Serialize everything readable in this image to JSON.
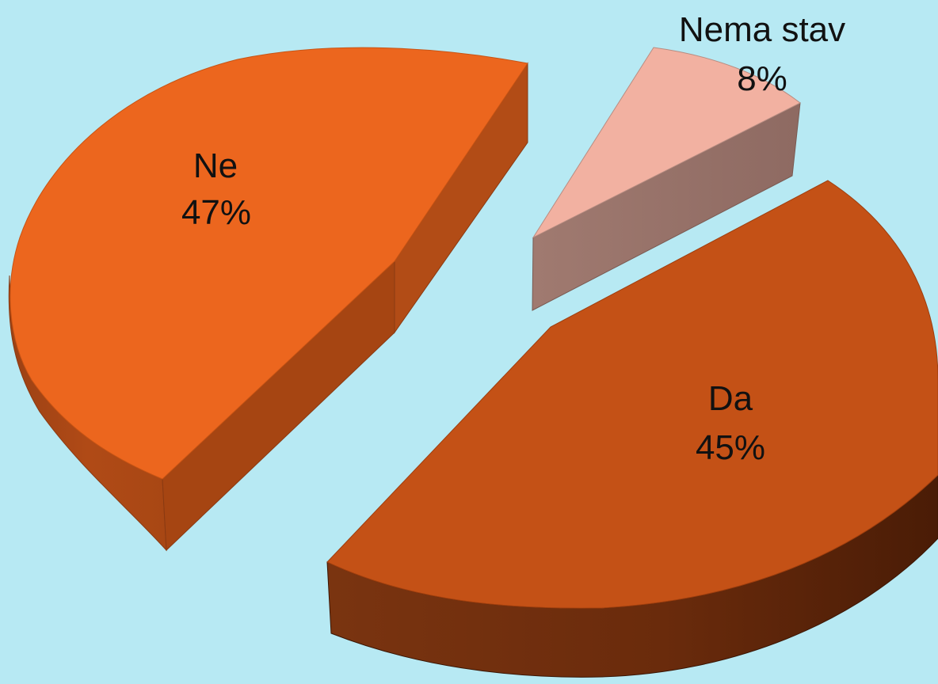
{
  "chart_data": {
    "type": "pie",
    "style": "3d-exploded",
    "slices": [
      {
        "label": "Da",
        "value": 45,
        "display": "45%",
        "color": "#c45116"
      },
      {
        "label": "Ne",
        "value": 47,
        "display": "47%",
        "color": "#ec661e"
      },
      {
        "label": "Nema stav",
        "value": 8,
        "display": "8%",
        "color": "#f2b1a1"
      }
    ],
    "legend": "none"
  }
}
